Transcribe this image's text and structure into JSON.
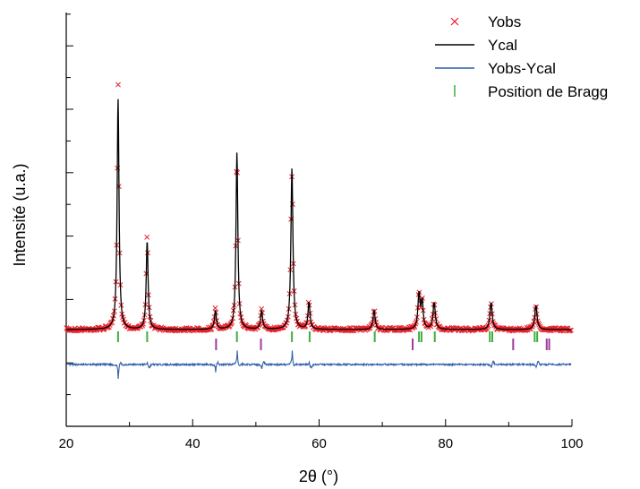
{
  "chart_data": {
    "type": "line",
    "title": "",
    "xlabel": "2θ (°)",
    "ylabel": "Intensité (u.a.)",
    "xlim": [
      20,
      100
    ],
    "xticks": [
      20,
      40,
      60,
      80,
      100
    ],
    "yticks_labeled": false,
    "grid": false,
    "legend_placement": "top-right",
    "colors": {
      "Yobs": "#e8202a",
      "Ycal": "#000000",
      "Yobs-Ycal": "#2f5fa8",
      "bragg_phase1": "#3fae3f",
      "bragg_phase2": "#a03a9e"
    },
    "legend": [
      {
        "name": "Yobs",
        "marker": "x",
        "color": "#e8202a"
      },
      {
        "name": "Ycal",
        "marker": "line",
        "color": "#000000"
      },
      {
        "name": "Yobs-Ycal",
        "marker": "line",
        "color": "#2f5fa8"
      },
      {
        "name": "Position de Bragg",
        "marker": "bar",
        "color": "#3fae3f"
      }
    ],
    "peaks": [
      {
        "x": 28.2,
        "height": 0.86,
        "width": 0.28
      },
      {
        "x": 32.8,
        "height": 0.33,
        "width": 0.28
      },
      {
        "x": 43.6,
        "height": 0.07,
        "width": 0.3
      },
      {
        "x": 47.0,
        "height": 0.66,
        "width": 0.28
      },
      {
        "x": 50.9,
        "height": 0.07,
        "width": 0.3
      },
      {
        "x": 55.7,
        "height": 0.6,
        "width": 0.3
      },
      {
        "x": 58.4,
        "height": 0.1,
        "width": 0.3
      },
      {
        "x": 68.7,
        "height": 0.07,
        "width": 0.32
      },
      {
        "x": 75.8,
        "height": 0.13,
        "width": 0.32
      },
      {
        "x": 76.3,
        "height": 0.1,
        "width": 0.3
      },
      {
        "x": 78.2,
        "height": 0.1,
        "width": 0.34
      },
      {
        "x": 87.2,
        "height": 0.1,
        "width": 0.34
      },
      {
        "x": 94.3,
        "height": 0.09,
        "width": 0.34
      }
    ],
    "bragg_positions_phase1": [
      28.2,
      32.8,
      47.0,
      55.7,
      58.5,
      68.8,
      75.8,
      76.2,
      78.3,
      87.0,
      87.4,
      94.1,
      94.5
    ],
    "bragg_positions_phase2": [
      43.7,
      50.8,
      74.8,
      90.7,
      96.0,
      96.4
    ],
    "difference_features": [
      {
        "x": 28.2,
        "amp": -0.055
      },
      {
        "x": 32.8,
        "amp": 0.01
      },
      {
        "x": 43.6,
        "amp": -0.03
      },
      {
        "x": 47.0,
        "amp": 0.06
      },
      {
        "x": 50.9,
        "amp": -0.02
      },
      {
        "x": 55.7,
        "amp": 0.06
      },
      {
        "x": 58.4,
        "amp": 0.01
      },
      {
        "x": 87.2,
        "amp": -0.015
      },
      {
        "x": 94.3,
        "amp": -0.015
      }
    ]
  }
}
